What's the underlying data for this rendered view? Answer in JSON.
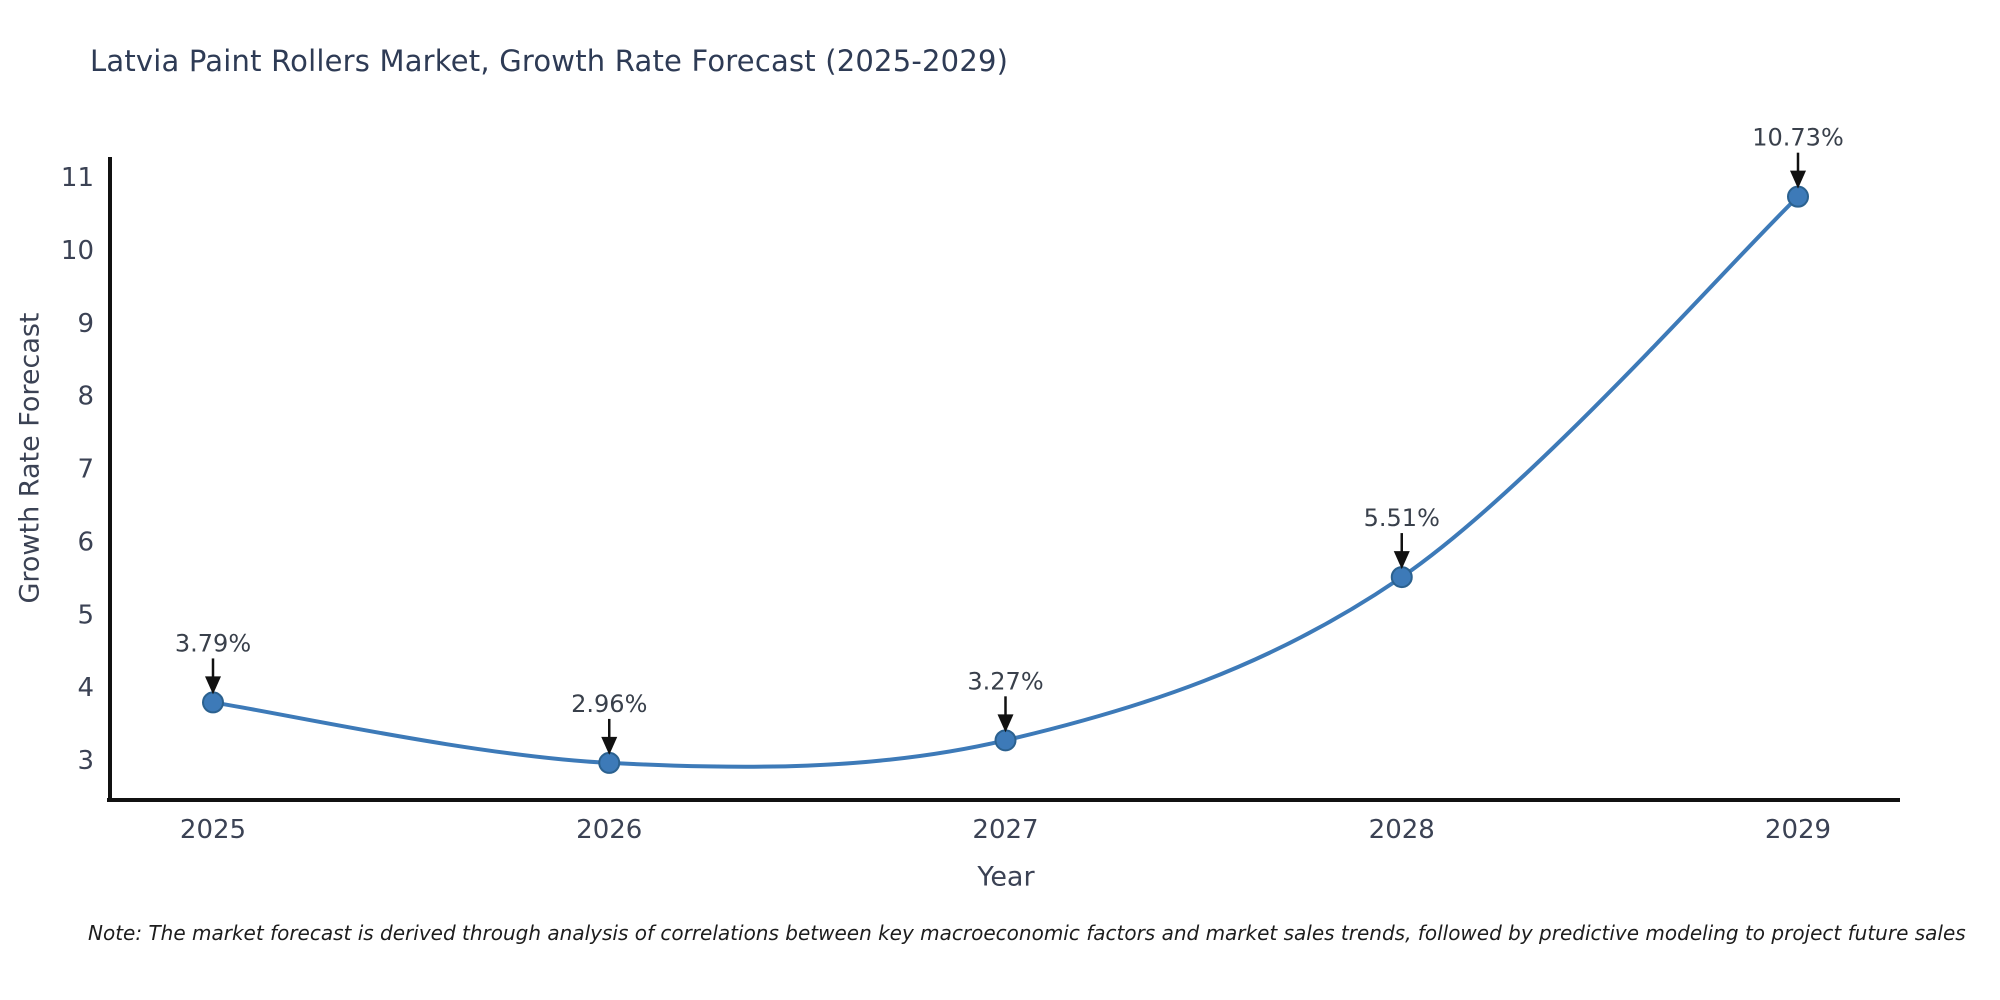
{
  "title": "Latvia Paint Rollers Market, Growth Rate Forecast (2025-2029)",
  "footnote": "Note: The market forecast is derived through analysis of correlations between key macroeconomic factors and market sales trends, followed by predictive modeling to project future sales",
  "chart_data": {
    "type": "line",
    "title": "Latvia Paint Rollers Market, Growth Rate Forecast (2025-2029)",
    "xlabel": "Year",
    "ylabel": "Growth Rate Forecast",
    "categories": [
      "2025",
      "2026",
      "2027",
      "2028",
      "2029"
    ],
    "values": [
      3.79,
      2.96,
      3.27,
      5.51,
      10.73
    ],
    "point_labels": [
      "3.79%",
      "2.96%",
      "3.27%",
      "5.51%",
      "10.73%"
    ],
    "yticks": [
      3,
      4,
      5,
      6,
      7,
      8,
      9,
      10,
      11
    ],
    "ylim": [
      2.45,
      11.27
    ],
    "grid": false,
    "legend": "none",
    "smooth": true,
    "annotations": "value labels above each point with black arrows pointing down to markers"
  },
  "colors": {
    "background": "#ffffff",
    "title_text": "#2e3b55",
    "axis_text": "#3b4254",
    "annotation_text": "#39404b",
    "spine": "#111111",
    "line": "#3d7ab8",
    "marker_fill": "#3d7ab8",
    "marker_edge": "#2b618f",
    "arrow": "#111111"
  }
}
